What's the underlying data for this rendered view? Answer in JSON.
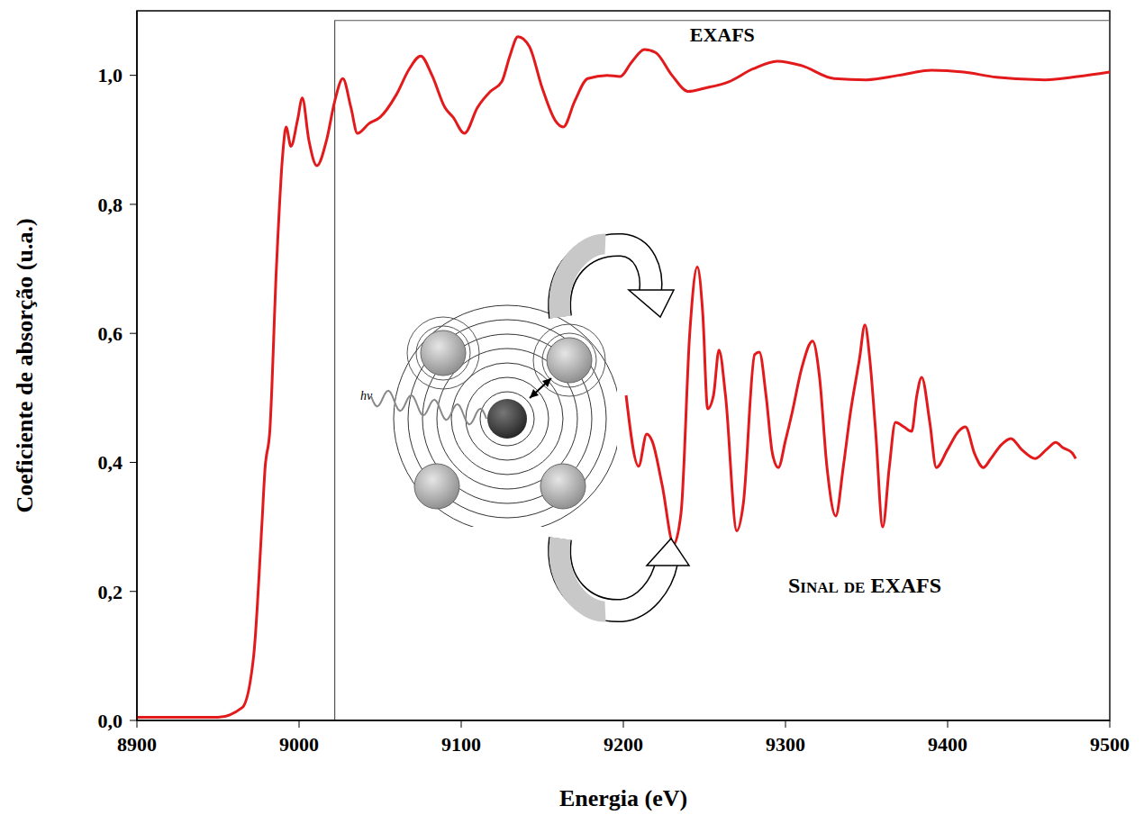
{
  "chart_data": {
    "type": "line",
    "x_label": "Energia (eV)",
    "y_label": "Coeficiente de absorção (u.a.)",
    "xlim": [
      8900,
      9500
    ],
    "ylim": [
      0,
      1.1
    ],
    "xticks": [
      8900,
      9000,
      9100,
      9200,
      9300,
      9400,
      9500
    ],
    "yticks": [
      {
        "value": 0,
        "label": "0,0"
      },
      {
        "value": 0.2,
        "label": "0,2"
      },
      {
        "value": 0.4,
        "label": "0,4"
      },
      {
        "value": 0.6,
        "label": "0,6"
      },
      {
        "value": 0.8,
        "label": "0,8"
      },
      {
        "value": 1.0,
        "label": "1,0"
      }
    ],
    "series": [
      {
        "color": "#e31a1c",
        "x": [
          8900,
          8950,
          8965,
          8972,
          8977,
          8979,
          8982,
          8986,
          8990,
          8992,
          8995,
          8999,
          9002,
          9006,
          9011,
          9017,
          9022,
          9027,
          9032,
          9036,
          9043,
          9050,
          9060,
          9068,
          9075,
          9082,
          9090,
          9095,
          9102,
          9110,
          9118,
          9125,
          9130,
          9135,
          9142,
          9150,
          9158,
          9163,
          9170,
          9178,
          9190,
          9198,
          9205,
          9213,
          9220,
          9230,
          9240,
          9250,
          9265,
          9280,
          9295,
          9310,
          9330,
          9350,
          9370,
          9390,
          9410,
          9430,
          9460,
          9480,
          9500
        ],
        "values": [
          0.005,
          0.005,
          0.02,
          0.1,
          0.3,
          0.39,
          0.45,
          0.7,
          0.88,
          0.92,
          0.89,
          0.93,
          0.965,
          0.9,
          0.86,
          0.9,
          0.96,
          0.995,
          0.95,
          0.91,
          0.925,
          0.935,
          0.97,
          1.01,
          1.03,
          1.0,
          0.95,
          0.935,
          0.91,
          0.95,
          0.975,
          0.99,
          1.03,
          1.06,
          1.045,
          0.98,
          0.93,
          0.92,
          0.96,
          0.995,
          1.0,
          0.998,
          1.02,
          1.04,
          1.035,
          1.0,
          0.975,
          0.98,
          0.99,
          1.01,
          1.022,
          1.015,
          0.995,
          0.993,
          1.0,
          1.008,
          1.005,
          0.997,
          0.993,
          0.998,
          1.005
        ]
      },
      {
        "name": "Sinal de EXAFS",
        "color": "#e31a1c",
        "x": [
          9201.7,
          9209.4,
          9214.4,
          9217.8,
          9224,
          9231,
          9235.6,
          9241,
          9245.6,
          9249,
          9252,
          9255.6,
          9259,
          9263,
          9270,
          9274,
          9281,
          9283.9,
          9288,
          9292,
          9295.6,
          9300,
          9304,
          9310,
          9316.7,
          9321,
          9325.6,
          9331,
          9335.6,
          9340,
          9345.6,
          9349,
          9352,
          9355.6,
          9360,
          9364,
          9367.8,
          9373,
          9377.8,
          9381,
          9384,
          9389,
          9393,
          9400,
          9406.7,
          9411,
          9416.7,
          9422,
          9426.7,
          9433,
          9439,
          9445.6,
          9454,
          9461,
          9466.7,
          9471,
          9476.7,
          9479
        ],
        "values": [
          0.504,
          0.394,
          0.444,
          0.433,
          0.364,
          0.273,
          0.322,
          0.602,
          0.703,
          0.63,
          0.483,
          0.504,
          0.574,
          0.504,
          0.294,
          0.336,
          0.567,
          0.571,
          0.504,
          0.413,
          0.392,
          0.434,
          0.476,
          0.546,
          0.588,
          0.532,
          0.392,
          0.317,
          0.392,
          0.476,
          0.56,
          0.613,
          0.56,
          0.448,
          0.3,
          0.392,
          0.462,
          0.455,
          0.448,
          0.504,
          0.532,
          0.462,
          0.392,
          0.42,
          0.448,
          0.455,
          0.413,
          0.392,
          0.406,
          0.427,
          0.437,
          0.42,
          0.406,
          0.42,
          0.431,
          0.423,
          0.415,
          0.406
        ]
      }
    ],
    "region": {
      "label": "EXAFS",
      "x": [
        9022,
        9500
      ],
      "y": [
        0,
        1.085
      ]
    },
    "diagram_label": "hν",
    "grid": false
  }
}
